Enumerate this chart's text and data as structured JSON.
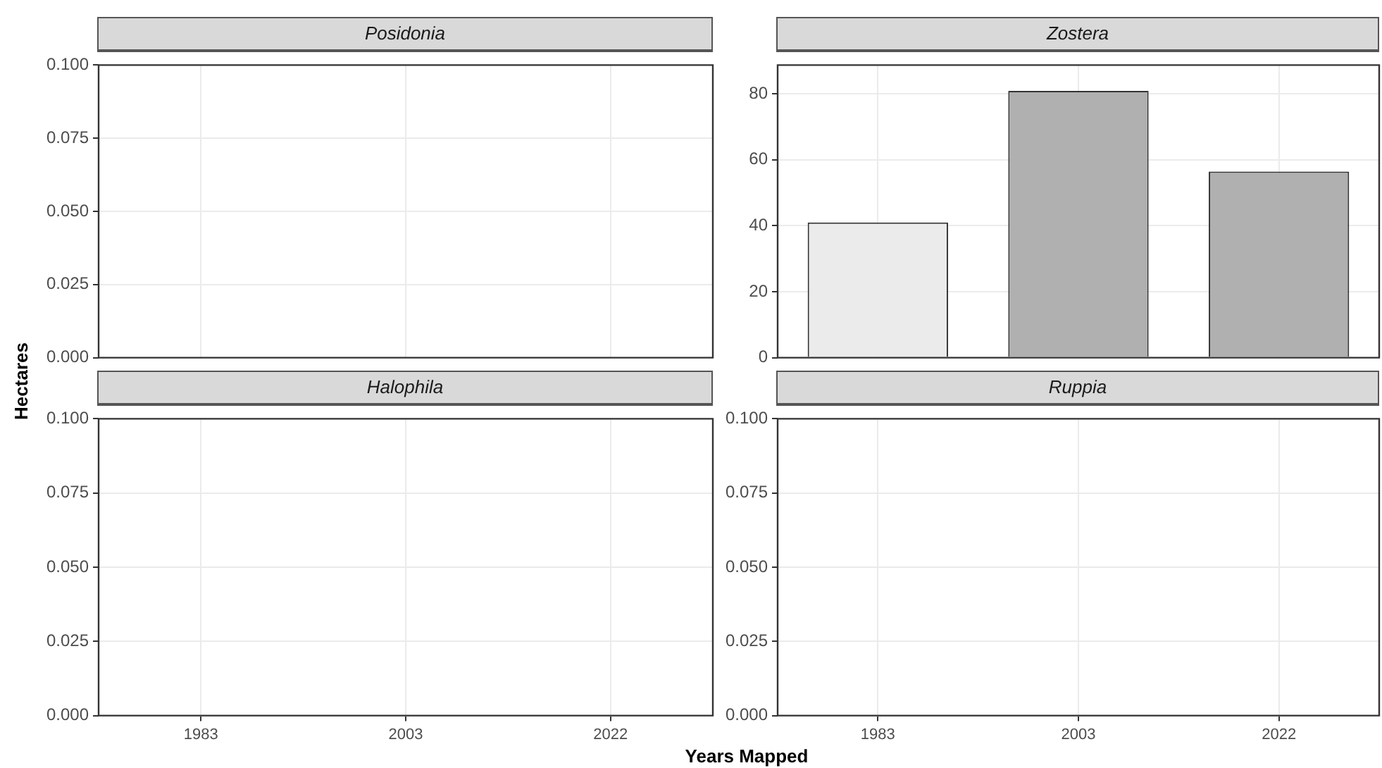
{
  "chart_data": [
    {
      "type": "bar",
      "title": "Posidonia",
      "categories": [
        "1983",
        "2003",
        "2022"
      ],
      "values": [
        null,
        null,
        null
      ],
      "ylim": [
        0,
        0.1
      ],
      "yticks": [
        {
          "value": 0,
          "label": "0.000"
        },
        {
          "value": 0.025,
          "label": "0.025"
        },
        {
          "value": 0.05,
          "label": "0.050"
        },
        {
          "value": 0.075,
          "label": "0.075"
        },
        {
          "value": 0.1,
          "label": "0.100"
        }
      ],
      "grid": true,
      "tick_labels": "y"
    },
    {
      "type": "bar",
      "title": "Zostera",
      "categories": [
        "1983",
        "2003",
        "2022"
      ],
      "values": [
        41.0,
        80.9,
        56.4
      ],
      "colors": [
        "#ebebeb",
        "#b0b0b0",
        "#b0b0b0"
      ],
      "ylim": [
        0,
        88.7
      ],
      "yticks": [
        0,
        20,
        40,
        60,
        80
      ],
      "grid": true,
      "tick_labels": "y"
    },
    {
      "type": "bar",
      "title": "Halophila",
      "xlabel": "Years Mapped",
      "ylabel": "Hectares",
      "categories": [
        "1983",
        "2003",
        "2022"
      ],
      "values": [
        null,
        null,
        null
      ],
      "ylim": [
        0,
        0.1
      ],
      "yticks": [
        {
          "value": 0,
          "label": "0.000"
        },
        {
          "value": 0.025,
          "label": "0.025"
        },
        {
          "value": 0.05,
          "label": "0.050"
        },
        {
          "value": 0.075,
          "label": "0.075"
        },
        {
          "value": 0.1,
          "label": "0.100"
        }
      ],
      "grid": true
    },
    {
      "type": "bar",
      "title": "Ruppia",
      "categories": [
        "1983",
        "2003",
        "2022"
      ],
      "values": [
        null,
        null,
        null
      ],
      "ylim": [
        0,
        0.1
      ],
      "yticks": [
        {
          "value": 0,
          "label": "0.000"
        },
        {
          "value": 0.025,
          "label": "0.025"
        },
        {
          "value": 0.05,
          "label": "0.050"
        },
        {
          "value": 0.075,
          "label": "0.075"
        },
        {
          "value": 0.1,
          "label": "0.100"
        }
      ],
      "grid": true
    }
  ]
}
